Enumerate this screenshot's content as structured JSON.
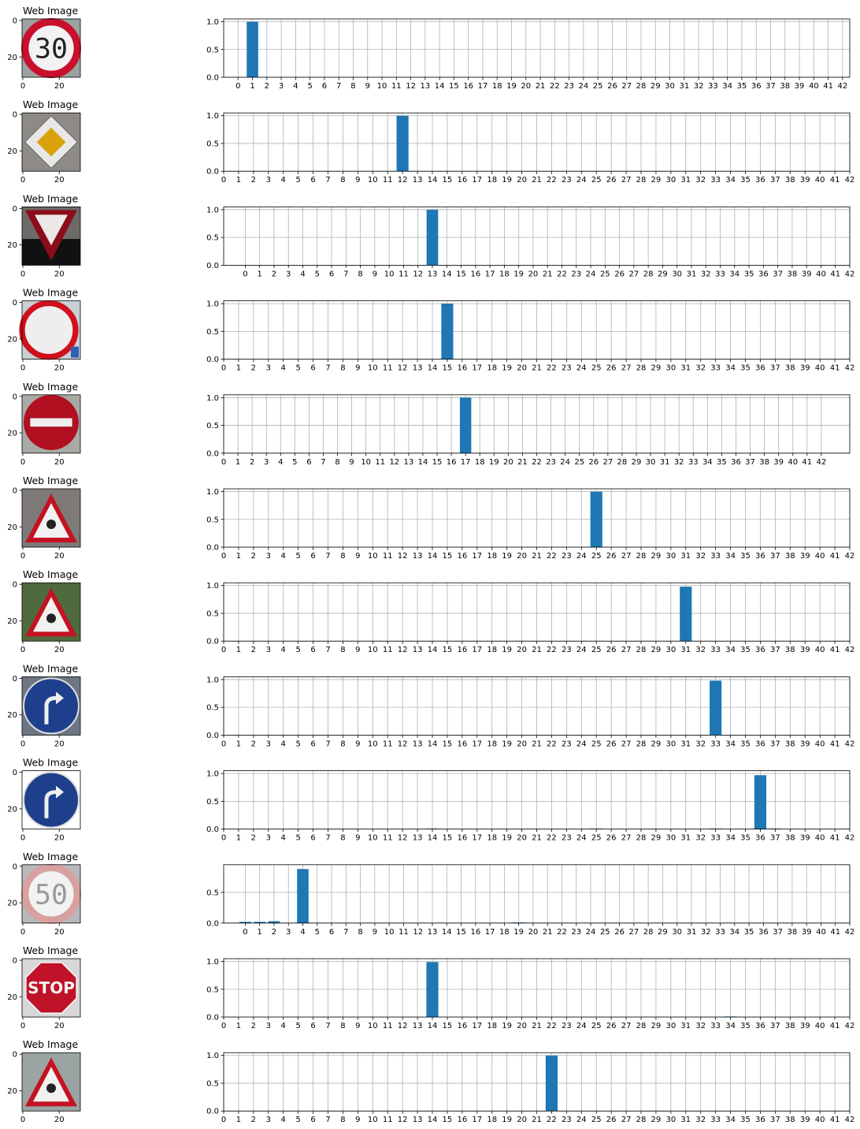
{
  "figure": {
    "rows": [
      {
        "image": {
          "title": "Web Image",
          "icon": "speed-limit-30-sign",
          "xticks": [
            "0",
            "20"
          ],
          "yticks": [
            "0",
            "20"
          ]
        },
        "chart_data": {
          "type": "bar",
          "x_offset": 0,
          "x_range": [
            -1,
            42.5
          ],
          "ylim": [
            0,
            1.05
          ],
          "yticks": [
            "0.0",
            "0.5",
            "1.0"
          ],
          "bars": [
            {
              "x": 1,
              "value": 1.0
            }
          ],
          "grid": true
        }
      },
      {
        "image": {
          "title": "Web Image",
          "icon": "priority-road-sign",
          "xticks": [
            "0",
            "20"
          ],
          "yticks": [
            "0",
            "20"
          ]
        },
        "chart_data": {
          "type": "bar",
          "x_offset": 0,
          "x_range": [
            0,
            42
          ],
          "ylim": [
            0,
            1.05
          ],
          "yticks": [
            "0.0",
            "0.5",
            "1.0"
          ],
          "bars": [
            {
              "x": 12,
              "value": 1.0
            }
          ],
          "grid": true
        }
      },
      {
        "image": {
          "title": "Web Image",
          "icon": "yield-sign",
          "xticks": [
            "0",
            "20"
          ],
          "yticks": [
            "0",
            "20"
          ]
        },
        "chart_data": {
          "type": "bar",
          "x_offset": 0,
          "x_range": [
            -1.5,
            42
          ],
          "ylim": [
            0,
            1.05
          ],
          "yticks": [
            "0.0",
            "0.5",
            "1.0"
          ],
          "bars": [
            {
              "x": 13,
              "value": 1.0
            }
          ],
          "grid": true
        }
      },
      {
        "image": {
          "title": "Web Image",
          "icon": "no-vehicles-sign",
          "xticks": [
            "0",
            "20"
          ],
          "yticks": [
            "0",
            "20"
          ]
        },
        "chart_data": {
          "type": "bar",
          "x_offset": 0,
          "x_range": [
            0,
            42
          ],
          "ylim": [
            0,
            1.05
          ],
          "yticks": [
            "0.0",
            "0.5",
            "1.0"
          ],
          "bars": [
            {
              "x": 15,
              "value": 1.0
            }
          ],
          "grid": true
        }
      },
      {
        "image": {
          "title": "Web Image",
          "icon": "no-entry-sign",
          "xticks": [
            "0",
            "20"
          ],
          "yticks": [
            "0",
            "20"
          ]
        },
        "chart_data": {
          "type": "bar",
          "x_offset": 0,
          "x_range": [
            0,
            44
          ],
          "ylim": [
            0,
            1.05
          ],
          "yticks": [
            "0.0",
            "0.5",
            "1.0"
          ],
          "bars": [
            {
              "x": 17,
              "value": 1.0
            }
          ],
          "grid": true
        }
      },
      {
        "image": {
          "title": "Web Image",
          "icon": "road-work-sign",
          "xticks": [
            "0",
            "20"
          ],
          "yticks": [
            "0",
            "20"
          ]
        },
        "chart_data": {
          "type": "bar",
          "x_offset": 0,
          "x_range": [
            0,
            42
          ],
          "ylim": [
            0,
            1.05
          ],
          "yticks": [
            "0.0",
            "0.5",
            "1.0"
          ],
          "bars": [
            {
              "x": 25,
              "value": 1.0
            }
          ],
          "grid": true
        }
      },
      {
        "image": {
          "title": "Web Image",
          "icon": "wild-animals-crossing-sign",
          "xticks": [
            "0",
            "20"
          ],
          "yticks": [
            "0",
            "20"
          ]
        },
        "chart_data": {
          "type": "bar",
          "x_offset": 0,
          "x_range": [
            0,
            42
          ],
          "ylim": [
            0,
            1.05
          ],
          "yticks": [
            "0.0",
            "0.5",
            "1.0"
          ],
          "bars": [
            {
              "x": 31,
              "value": 0.98
            }
          ],
          "grid": true
        }
      },
      {
        "image": {
          "title": "Web Image",
          "icon": "turn-right-ahead-sign",
          "xticks": [
            "0",
            "20"
          ],
          "yticks": [
            "0",
            "20"
          ]
        },
        "chart_data": {
          "type": "bar",
          "x_offset": 0,
          "x_range": [
            0,
            42
          ],
          "ylim": [
            0,
            1.05
          ],
          "yticks": [
            "0.0",
            "0.5",
            "1.0"
          ],
          "bars": [
            {
              "x": 33,
              "value": 0.98
            }
          ],
          "grid": true
        }
      },
      {
        "image": {
          "title": "Web Image",
          "icon": "go-straight-or-right-sign",
          "xticks": [
            "0",
            "20"
          ],
          "yticks": [
            "0",
            "20"
          ]
        },
        "chart_data": {
          "type": "bar",
          "x_offset": 0,
          "x_range": [
            0,
            42
          ],
          "ylim": [
            0,
            1.05
          ],
          "yticks": [
            "0.0",
            "0.5",
            "1.0"
          ],
          "bars": [
            {
              "x": 14,
              "value": 0.01
            },
            {
              "x": 25,
              "value": 0.01
            },
            {
              "x": 33,
              "value": 0.01
            },
            {
              "x": 36,
              "value": 0.97
            },
            {
              "x": 37,
              "value": 0.01
            }
          ],
          "grid": true
        }
      },
      {
        "image": {
          "title": "Web Image",
          "icon": "speed-limit-50-sign",
          "xticks": [
            "0",
            "20"
          ],
          "yticks": [
            "0",
            "20"
          ]
        },
        "chart_data": {
          "type": "bar",
          "x_offset": 0,
          "x_range": [
            -1.5,
            42
          ],
          "ylim": [
            0,
            0.95
          ],
          "yticks": [
            "0.0",
            "0.5"
          ],
          "bars": [
            {
              "x": 0,
              "value": 0.02
            },
            {
              "x": 1,
              "value": 0.02
            },
            {
              "x": 2,
              "value": 0.03
            },
            {
              "x": 4,
              "value": 0.88
            },
            {
              "x": 19,
              "value": 0.01
            }
          ],
          "grid": true
        }
      },
      {
        "image": {
          "title": "Web Image",
          "icon": "stop-sign",
          "xticks": [
            "0",
            "20"
          ],
          "yticks": [
            "0",
            "20"
          ]
        },
        "chart_data": {
          "type": "bar",
          "x_offset": 0,
          "x_range": [
            0,
            42
          ],
          "ylim": [
            0,
            1.05
          ],
          "yticks": [
            "0.0",
            "0.5",
            "1.0"
          ],
          "bars": [
            {
              "x": 14,
              "value": 0.99
            },
            {
              "x": 34,
              "value": 0.01
            }
          ],
          "grid": true
        }
      },
      {
        "image": {
          "title": "Web Image",
          "icon": "road-work-sign-2",
          "xticks": [
            "0",
            "20"
          ],
          "yticks": [
            "0",
            "20"
          ]
        },
        "chart_data": {
          "type": "bar",
          "x_offset": 0,
          "x_range": [
            0,
            42
          ],
          "ylim": [
            0,
            1.05
          ],
          "yticks": [
            "0.0",
            "0.5",
            "1.0"
          ],
          "bars": [
            {
              "x": 22,
              "value": 1.0
            }
          ],
          "grid": true
        }
      }
    ],
    "colors": {
      "bar": "#1f77b4",
      "grid": "#b0b0b0",
      "axis": "#000000"
    }
  }
}
